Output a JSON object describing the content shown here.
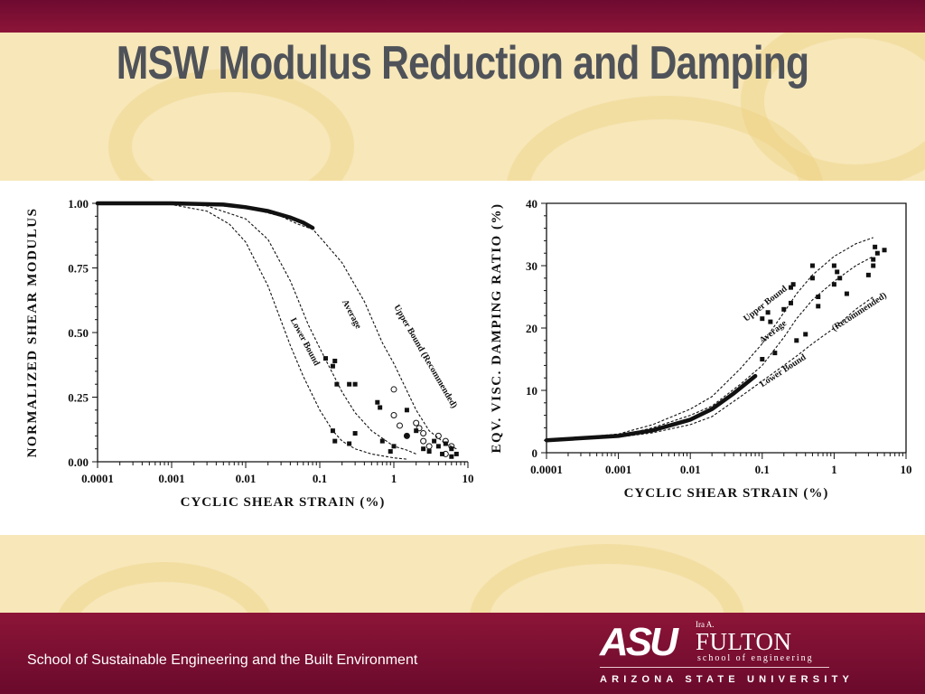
{
  "slide": {
    "title": "MSW Modulus Reduction and Damping",
    "footer_text": "School of Sustainable Engineering and the Built Environment"
  },
  "logo": {
    "asu": "ASU",
    "ira": "Ira A.",
    "fulton": "FULTON",
    "school": "school of engineering",
    "university": "ARIZONA STATE UNIVERSITY"
  },
  "colors": {
    "maroon": "#8c1538",
    "gold_band": "#f7e7b9",
    "title_gray": "#4f5359"
  },
  "chart_data": [
    {
      "type": "line",
      "x_scale": "log",
      "xlabel": "CYCLIC SHEAR STRAIN (%)",
      "ylabel": "NORMALIZED SHEAR MODULUS",
      "xlim": [
        0.0001,
        10
      ],
      "ylim": [
        0,
        1
      ],
      "x_ticks": [
        "0.0001",
        "0.001",
        "0.01",
        "0.1",
        "1",
        "10"
      ],
      "y_ticks": [
        "0.00",
        "0.25",
        "0.50",
        "0.75",
        "1.00"
      ],
      "series": [
        {
          "name": "Lower Bound",
          "style": "dashed",
          "x": [
            0.0001,
            0.001,
            0.003,
            0.006,
            0.01,
            0.02,
            0.04,
            0.06,
            0.1,
            0.15,
            0.2,
            0.3,
            0.5,
            0.8,
            1,
            1.5
          ],
          "y": [
            1.0,
            0.995,
            0.97,
            0.92,
            0.85,
            0.68,
            0.45,
            0.33,
            0.2,
            0.12,
            0.08,
            0.05,
            0.03,
            0.02,
            0.015,
            0.01
          ]
        },
        {
          "name": "Average",
          "style": "dashed",
          "x": [
            0.0001,
            0.001,
            0.003,
            0.01,
            0.02,
            0.04,
            0.07,
            0.1,
            0.2,
            0.3,
            0.5,
            1,
            1.5,
            2
          ],
          "y": [
            1.0,
            1.0,
            0.99,
            0.94,
            0.86,
            0.7,
            0.53,
            0.44,
            0.27,
            0.19,
            0.12,
            0.06,
            0.045,
            0.03
          ]
        },
        {
          "name": "Upper Bound (Recommended)",
          "style": "dashed",
          "x": [
            0.0001,
            0.001,
            0.01,
            0.03,
            0.05,
            0.08,
            0.1,
            0.2,
            0.4,
            0.7,
            1,
            2,
            3,
            5,
            7
          ],
          "y": [
            1.0,
            1.0,
            0.985,
            0.95,
            0.92,
            0.9,
            0.87,
            0.77,
            0.62,
            0.46,
            0.38,
            0.2,
            0.12,
            0.07,
            0.05
          ]
        },
        {
          "name": "",
          "style": "thick",
          "x": [
            0.0001,
            0.001,
            0.005,
            0.01,
            0.02,
            0.04,
            0.06,
            0.08
          ],
          "y": [
            1.0,
            1.0,
            0.995,
            0.985,
            0.97,
            0.945,
            0.925,
            0.905
          ]
        }
      ],
      "points_square": [
        [
          0.12,
          0.4
        ],
        [
          0.16,
          0.39
        ],
        [
          0.15,
          0.37
        ],
        [
          0.17,
          0.3
        ],
        [
          0.25,
          0.3
        ],
        [
          0.3,
          0.3
        ],
        [
          0.15,
          0.12
        ],
        [
          0.16,
          0.08
        ],
        [
          0.25,
          0.07
        ],
        [
          0.3,
          0.11
        ],
        [
          0.6,
          0.23
        ],
        [
          0.65,
          0.21
        ],
        [
          0.7,
          0.08
        ],
        [
          0.9,
          0.04
        ],
        [
          1.0,
          0.06
        ],
        [
          1.5,
          0.2
        ],
        [
          1.5,
          0.1
        ],
        [
          2,
          0.12
        ],
        [
          2.5,
          0.05
        ],
        [
          3,
          0.04
        ],
        [
          3.5,
          0.08
        ],
        [
          4,
          0.06
        ],
        [
          4.5,
          0.03
        ],
        [
          5,
          0.07
        ],
        [
          6,
          0.05
        ],
        [
          6,
          0.02
        ],
        [
          7,
          0.03
        ]
      ],
      "points_circle": [
        [
          1.0,
          0.28
        ],
        [
          1.0,
          0.18
        ],
        [
          1.2,
          0.14
        ],
        [
          1.5,
          0.1
        ],
        [
          2,
          0.15
        ],
        [
          2.2,
          0.13
        ],
        [
          2.5,
          0.11
        ],
        [
          2.5,
          0.08
        ],
        [
          3,
          0.06
        ],
        [
          4,
          0.1
        ],
        [
          5,
          0.08
        ],
        [
          5,
          0.03
        ],
        [
          6,
          0.06
        ]
      ]
    },
    {
      "type": "line",
      "x_scale": "log",
      "xlabel": "CYCLIC SHEAR STRAIN (%)",
      "ylabel": "EQV. VISC. DAMPING RATIO (%)",
      "xlim": [
        0.0001,
        10
      ],
      "ylim": [
        0,
        40
      ],
      "x_ticks": [
        "0.0001",
        "0.001",
        "0.01",
        "0.1",
        "1",
        "10"
      ],
      "y_ticks": [
        "0",
        "10",
        "20",
        "30",
        "40"
      ],
      "series": [
        {
          "name": "Upper Bound",
          "style": "dashed",
          "x": [
            0.0001,
            0.001,
            0.003,
            0.01,
            0.02,
            0.05,
            0.1,
            0.2,
            0.3,
            0.5,
            1,
            2,
            3.5
          ],
          "y": [
            2,
            3,
            4.5,
            7,
            9,
            13.5,
            17.5,
            22.5,
            25.5,
            28.5,
            31.5,
            33.5,
            34.5
          ]
        },
        {
          "name": "Average",
          "style": "dashed",
          "x": [
            0.0001,
            0.001,
            0.003,
            0.01,
            0.02,
            0.05,
            0.1,
            0.2,
            0.3,
            0.5,
            1,
            2,
            3.5
          ],
          "y": [
            2,
            2.7,
            4,
            6,
            7.5,
            11,
            14,
            18.5,
            21.5,
            24.5,
            27.5,
            30,
            31.5
          ]
        },
        {
          "name": "Lower Bound (Recommended)",
          "style": "dashed",
          "x": [
            0.0001,
            0.001,
            0.003,
            0.01,
            0.02,
            0.05,
            0.1,
            0.2,
            0.3,
            0.5,
            1,
            2,
            3.5
          ],
          "y": [
            2,
            2.5,
            3.2,
            4.5,
            5.8,
            9,
            11.5,
            14,
            15.5,
            17.5,
            20,
            23,
            25
          ]
        },
        {
          "name": "",
          "style": "thick",
          "x": [
            0.0001,
            0.001,
            0.003,
            0.01,
            0.02,
            0.04,
            0.08
          ],
          "y": [
            2,
            2.7,
            3.6,
            5.3,
            7,
            9.5,
            12.3
          ]
        }
      ],
      "points_square": [
        [
          0.1,
          21.5
        ],
        [
          0.12,
          22.5
        ],
        [
          0.13,
          21
        ],
        [
          0.15,
          16
        ],
        [
          0.1,
          15
        ],
        [
          0.2,
          23
        ],
        [
          0.25,
          26.5
        ],
        [
          0.25,
          24
        ],
        [
          0.27,
          27
        ],
        [
          0.3,
          18
        ],
        [
          0.4,
          19
        ],
        [
          0.5,
          30
        ],
        [
          0.5,
          28
        ],
        [
          0.6,
          25
        ],
        [
          0.6,
          23.5
        ],
        [
          1,
          30
        ],
        [
          1.1,
          29
        ],
        [
          1.2,
          28
        ],
        [
          1.5,
          25.5
        ],
        [
          1,
          27
        ],
        [
          3,
          28.5
        ],
        [
          3.5,
          30
        ],
        [
          3.5,
          31
        ],
        [
          3.7,
          33
        ],
        [
          4,
          32
        ],
        [
          5,
          32.5
        ]
      ]
    }
  ]
}
